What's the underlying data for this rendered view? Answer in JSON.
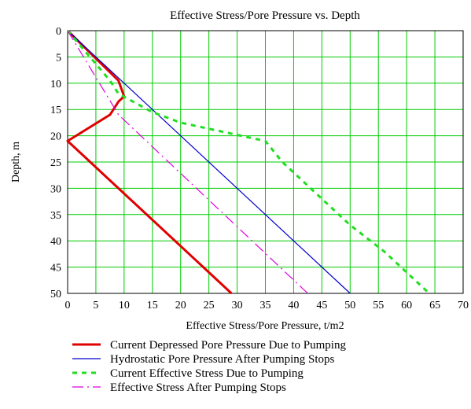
{
  "chart_data": {
    "type": "line",
    "title": "Effective Stress/Pore Pressure vs. Depth",
    "xlabel": "Effective Stress/Pore Pressure, t/m2",
    "ylabel": "Depth, m",
    "xlim": [
      0,
      70
    ],
    "ylim": [
      0,
      50
    ],
    "y_inverted": true,
    "x_ticks": [
      "0",
      "5",
      "10",
      "15",
      "20",
      "25",
      "30",
      "35",
      "40",
      "45",
      "50",
      "55",
      "60",
      "65",
      "70"
    ],
    "y_ticks": [
      "0",
      "5",
      "10",
      "15",
      "20",
      "25",
      "30",
      "35",
      "40",
      "45",
      "50"
    ],
    "grid": true,
    "grid_color": "#00cc00",
    "legend_position": "bottom",
    "series": [
      {
        "name": "Current Depressed Pore Pressure Due to Pumping",
        "color": "#e00000",
        "style": "solid-thick",
        "points": [
          [
            0,
            0
          ],
          [
            9,
            9.5
          ],
          [
            10,
            12.5
          ],
          [
            9,
            13.5
          ],
          [
            7.5,
            16
          ],
          [
            0,
            21
          ],
          [
            29,
            50
          ]
        ]
      },
      {
        "name": "Hydrostatic Pore Pressure After Pumping Stops",
        "color": "#0000cc",
        "style": "solid-thin",
        "points": [
          [
            0,
            0
          ],
          [
            50,
            50
          ]
        ]
      },
      {
        "name": "Current Effective Stress Due to Pumping",
        "color": "#22dd22",
        "style": "dashed",
        "points": [
          [
            0,
            0
          ],
          [
            7.5,
            9.5
          ],
          [
            9,
            12
          ],
          [
            15,
            15.5
          ],
          [
            20,
            17.5
          ],
          [
            35,
            21
          ],
          [
            38,
            25
          ],
          [
            45,
            32
          ],
          [
            50,
            37
          ],
          [
            56,
            42
          ],
          [
            60,
            46
          ],
          [
            64,
            50
          ]
        ]
      },
      {
        "name": "Effective Stress After Pumping Stops",
        "color": "#dd00dd",
        "style": "dashdot",
        "points": [
          [
            0,
            0
          ],
          [
            9,
            16
          ],
          [
            42.5,
            50
          ]
        ]
      }
    ]
  }
}
